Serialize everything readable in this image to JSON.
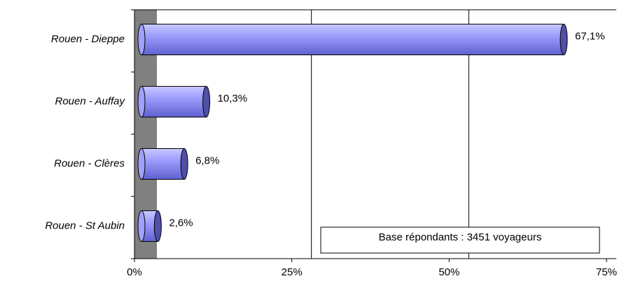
{
  "chart_data": {
    "type": "bar",
    "orientation": "horizontal",
    "categories": [
      "Rouen - Dieppe",
      "Rouen - Auffay",
      "Rouen - Clères",
      "Rouen - St Aubin"
    ],
    "values": [
      67.1,
      10.3,
      6.8,
      2.6
    ],
    "value_labels": [
      "67,1%",
      "10,3%",
      "6,8%",
      "2,6%"
    ],
    "color": "#8080f0",
    "xlim": [
      0,
      75
    ],
    "xticks": [
      {
        "value": 0,
        "label": "0%"
      },
      {
        "value": 25,
        "label": "25%"
      },
      {
        "value": 50,
        "label": "50%"
      },
      {
        "value": 75,
        "label": "75%"
      }
    ],
    "grid": true,
    "annotation": "Base répondants : 3451 voyageurs"
  }
}
